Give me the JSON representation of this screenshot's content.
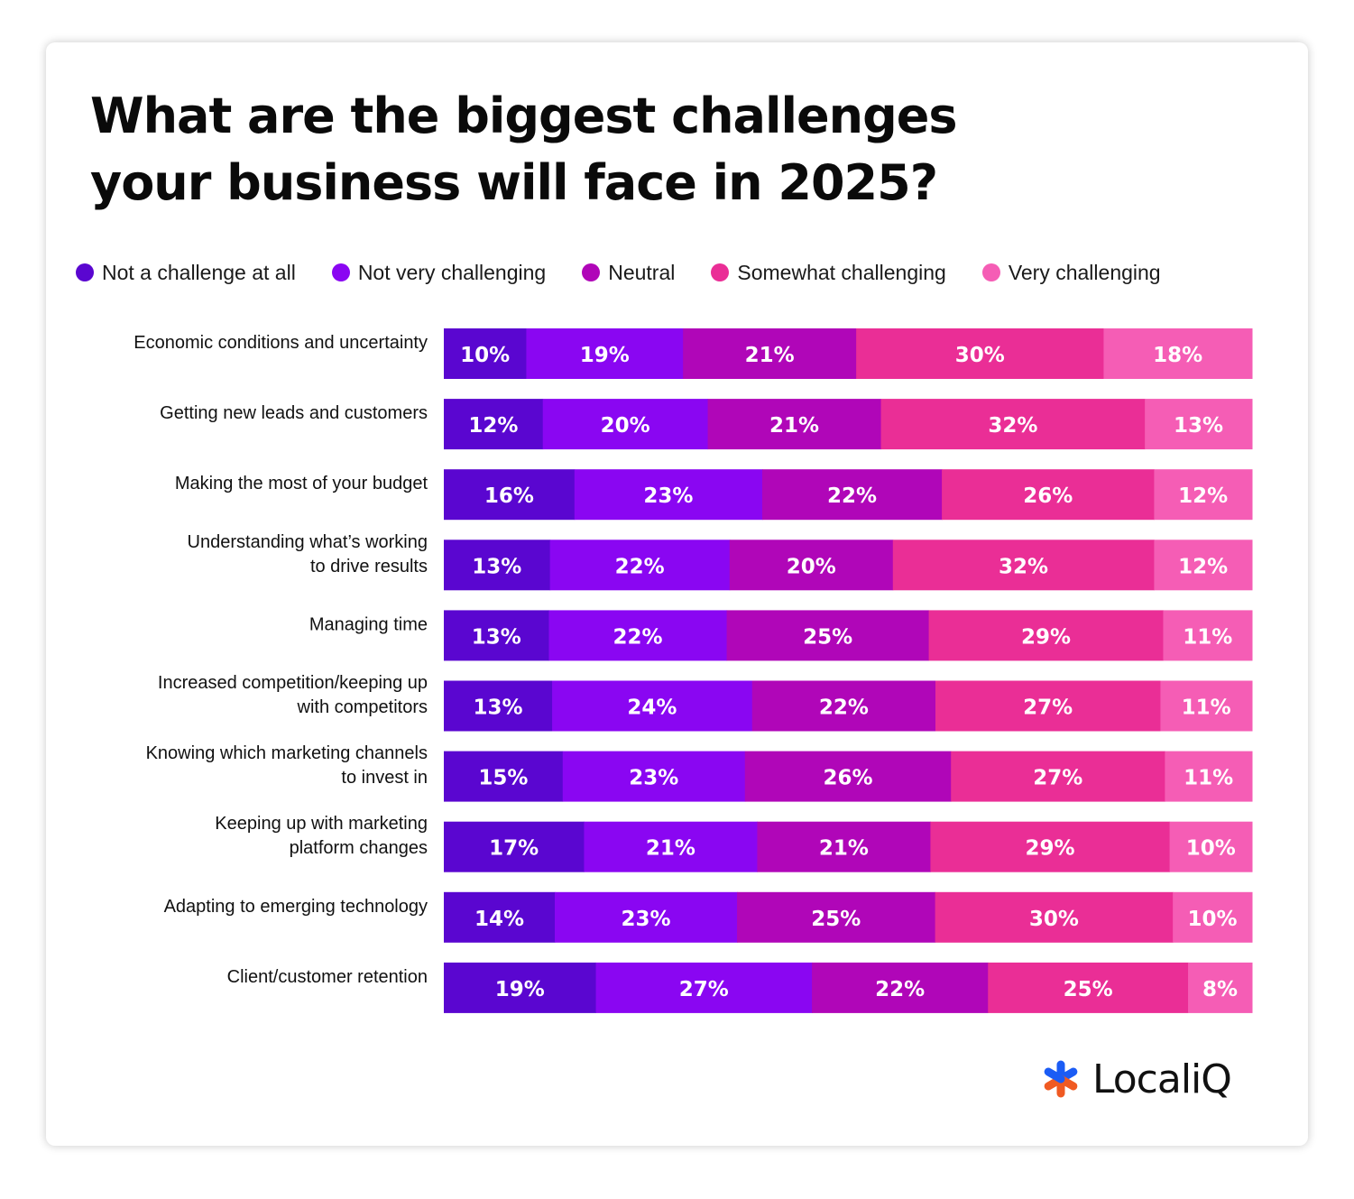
{
  "chart_data": {
    "type": "bar",
    "orientation": "horizontal",
    "stacked": true,
    "title": "What are the biggest challenges your business will face in 2025?",
    "legend_position": "top",
    "grid": false,
    "categories": [
      [
        "Economic conditions and uncertainty"
      ],
      [
        "Getting new leads and customers"
      ],
      [
        "Making the most of your budget"
      ],
      [
        "Understanding what’s working",
        "to drive results"
      ],
      [
        "Managing time"
      ],
      [
        "Increased competition/keeping up",
        "with competitors"
      ],
      [
        "Knowing which marketing channels",
        "to invest in"
      ],
      [
        "Keeping up with marketing",
        "platform changes"
      ],
      [
        "Adapting to emerging technology"
      ],
      [
        "Client/customer retention"
      ]
    ],
    "series": [
      {
        "name": "Not a challenge at all",
        "color": "#5a06d0",
        "values": [
          10,
          12,
          16,
          13,
          13,
          13,
          15,
          17,
          14,
          19
        ]
      },
      {
        "name": "Not very challenging",
        "color": "#8a06f2",
        "values": [
          19,
          20,
          23,
          22,
          22,
          24,
          23,
          21,
          23,
          27
        ]
      },
      {
        "name": "Neutral",
        "color": "#b006b8",
        "values": [
          21,
          21,
          22,
          20,
          25,
          22,
          26,
          21,
          25,
          22
        ]
      },
      {
        "name": "Somewhat challenging",
        "color": "#ea2e96",
        "values": [
          30,
          32,
          26,
          32,
          29,
          27,
          27,
          29,
          30,
          25
        ]
      },
      {
        "name": "Very challenging",
        "color": "#f55db5",
        "values": [
          18,
          13,
          12,
          12,
          11,
          11,
          11,
          10,
          10,
          8
        ]
      }
    ],
    "value_suffix": "%"
  },
  "logo": {
    "text": "LocaliQ",
    "colors": [
      "#1b5cf5",
      "#f05a22"
    ]
  }
}
